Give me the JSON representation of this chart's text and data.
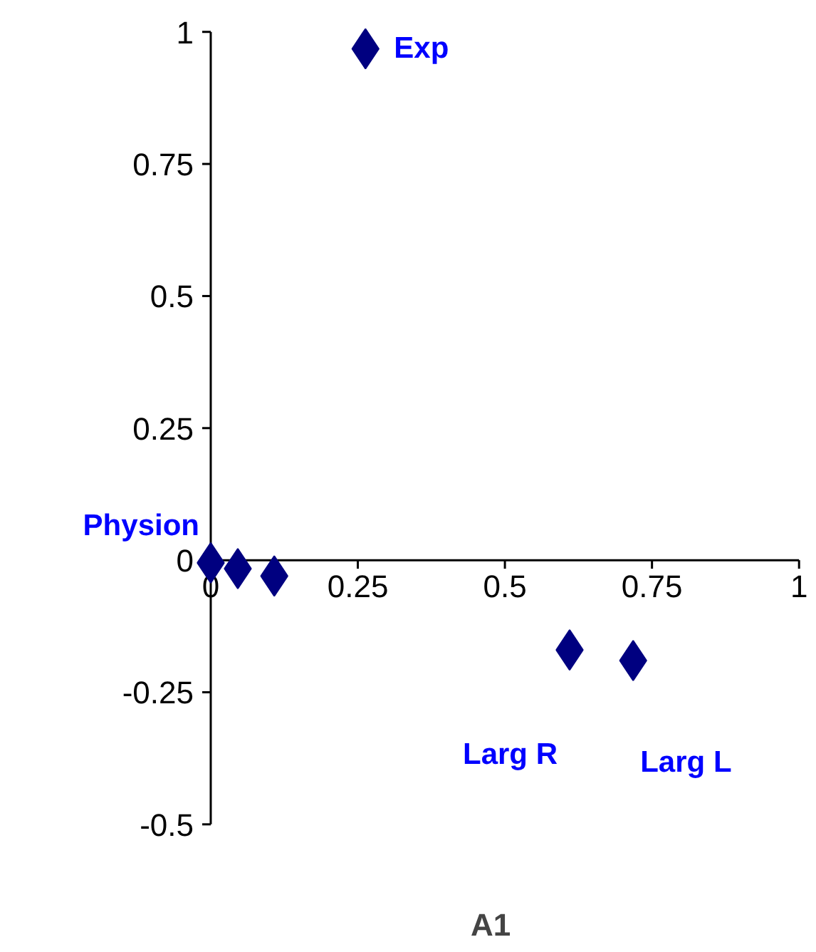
{
  "chart_data": {
    "type": "scatter",
    "xlabel": "A1",
    "x": [
      0,
      0.046,
      0.108,
      0.263,
      0.61,
      0.718
    ],
    "values": [
      -0.005,
      -0.016,
      -0.03,
      0.968,
      -0.17,
      -0.19
    ],
    "color": "#000080",
    "marker": "diamond",
    "xlim": [
      0,
      1
    ],
    "ylim": [
      -0.5,
      1
    ],
    "xticks": [
      0,
      0.25,
      0.5,
      0.75,
      1
    ],
    "yticks": [
      -0.5,
      -0.25,
      0,
      0.25,
      0.5,
      0.75,
      1
    ],
    "annotations": [
      {
        "text": "Exp",
        "x": 0.263,
        "y": 0.968
      },
      {
        "text": "Physion",
        "x": 0,
        "y": -0.005
      },
      {
        "text": "Larg R",
        "x": 0.61,
        "y": -0.17
      },
      {
        "text": "Larg L",
        "x": 0.718,
        "y": -0.19
      }
    ]
  }
}
